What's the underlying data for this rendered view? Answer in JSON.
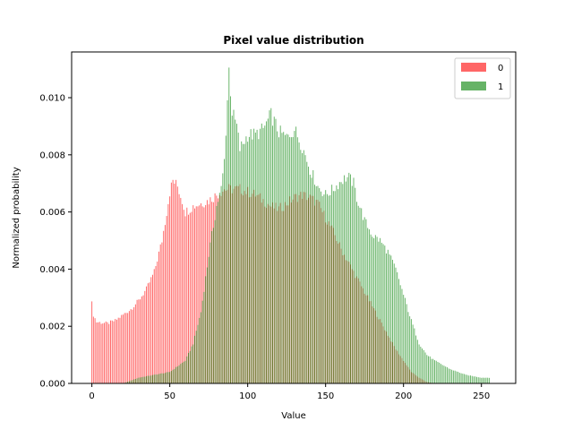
{
  "chart_data": {
    "type": "bar",
    "title": "Pixel value distribution",
    "xlabel": "Value",
    "ylabel": "Normalized probability",
    "xlim": [
      -13,
      272
    ],
    "ylim": [
      0,
      0.0116
    ],
    "x_ticks": [
      0,
      50,
      100,
      150,
      200,
      250
    ],
    "y_ticks": [
      0.0,
      0.002,
      0.004,
      0.006,
      0.008,
      0.01
    ],
    "y_tick_labels": [
      "0.000",
      "0.002",
      "0.004",
      "0.006",
      "0.008",
      "0.010"
    ],
    "legend_position": "top-right",
    "grid": false,
    "bins": 256,
    "series": [
      {
        "name": "0",
        "color": "#ff0000",
        "alpha": 0.6,
        "points": [
          [
            0,
            0.0028
          ],
          [
            1,
            0.0024
          ],
          [
            3,
            0.00215
          ],
          [
            10,
            0.0021
          ],
          [
            15,
            0.0022
          ],
          [
            20,
            0.0024
          ],
          [
            25,
            0.0026
          ],
          [
            30,
            0.0029
          ],
          [
            35,
            0.0033
          ],
          [
            40,
            0.0039
          ],
          [
            45,
            0.005
          ],
          [
            48,
            0.006
          ],
          [
            50,
            0.0067
          ],
          [
            52,
            0.0071
          ],
          [
            55,
            0.0069
          ],
          [
            58,
            0.0064
          ],
          [
            60,
            0.006
          ],
          [
            65,
            0.0062
          ],
          [
            70,
            0.0063
          ],
          [
            75,
            0.0064
          ],
          [
            80,
            0.0066
          ],
          [
            85,
            0.0068
          ],
          [
            90,
            0.0068
          ],
          [
            95,
            0.0068
          ],
          [
            100,
            0.0067
          ],
          [
            105,
            0.0066
          ],
          [
            110,
            0.0064
          ],
          [
            115,
            0.0062
          ],
          [
            120,
            0.0061
          ],
          [
            125,
            0.0063
          ],
          [
            130,
            0.0065
          ],
          [
            135,
            0.0066
          ],
          [
            140,
            0.0065
          ],
          [
            145,
            0.0063
          ],
          [
            150,
            0.0058
          ],
          [
            155,
            0.0053
          ],
          [
            160,
            0.0047
          ],
          [
            165,
            0.0042
          ],
          [
            170,
            0.0037
          ],
          [
            175,
            0.0032
          ],
          [
            180,
            0.0027
          ],
          [
            185,
            0.0022
          ],
          [
            190,
            0.0017
          ],
          [
            195,
            0.0012
          ],
          [
            200,
            0.0008
          ],
          [
            205,
            0.0004
          ],
          [
            210,
            0.0002
          ],
          [
            215,
            5e-05
          ],
          [
            220,
            0.0
          ]
        ]
      },
      {
        "name": "1",
        "color": "#008000",
        "alpha": 0.6,
        "points": [
          [
            0,
            0.0
          ],
          [
            20,
            0.0
          ],
          [
            25,
            0.0001
          ],
          [
            30,
            0.0002
          ],
          [
            40,
            0.0003
          ],
          [
            50,
            0.0004
          ],
          [
            60,
            0.0008
          ],
          [
            65,
            0.0014
          ],
          [
            70,
            0.0025
          ],
          [
            75,
            0.0045
          ],
          [
            80,
            0.0062
          ],
          [
            83,
            0.0068
          ],
          [
            85,
            0.0078
          ],
          [
            88,
            0.011
          ],
          [
            90,
            0.0095
          ],
          [
            93,
            0.009
          ],
          [
            95,
            0.0082
          ],
          [
            100,
            0.0087
          ],
          [
            105,
            0.0087
          ],
          [
            110,
            0.0089
          ],
          [
            115,
            0.0094
          ],
          [
            120,
            0.0088
          ],
          [
            125,
            0.0086
          ],
          [
            130,
            0.0089
          ],
          [
            135,
            0.0083
          ],
          [
            140,
            0.0075
          ],
          [
            145,
            0.0069
          ],
          [
            150,
            0.0066
          ],
          [
            155,
            0.0068
          ],
          [
            160,
            0.0071
          ],
          [
            163,
            0.0072
          ],
          [
            165,
            0.0072
          ],
          [
            168,
            0.007
          ],
          [
            170,
            0.0065
          ],
          [
            175,
            0.0057
          ],
          [
            180,
            0.0052
          ],
          [
            185,
            0.005
          ],
          [
            190,
            0.0046
          ],
          [
            195,
            0.004
          ],
          [
            200,
            0.0031
          ],
          [
            205,
            0.0022
          ],
          [
            210,
            0.0014
          ],
          [
            215,
            0.001
          ],
          [
            220,
            0.0008
          ],
          [
            230,
            0.0005
          ],
          [
            240,
            0.0003
          ],
          [
            250,
            0.0002
          ],
          [
            255,
            0.0002
          ]
        ]
      }
    ]
  }
}
